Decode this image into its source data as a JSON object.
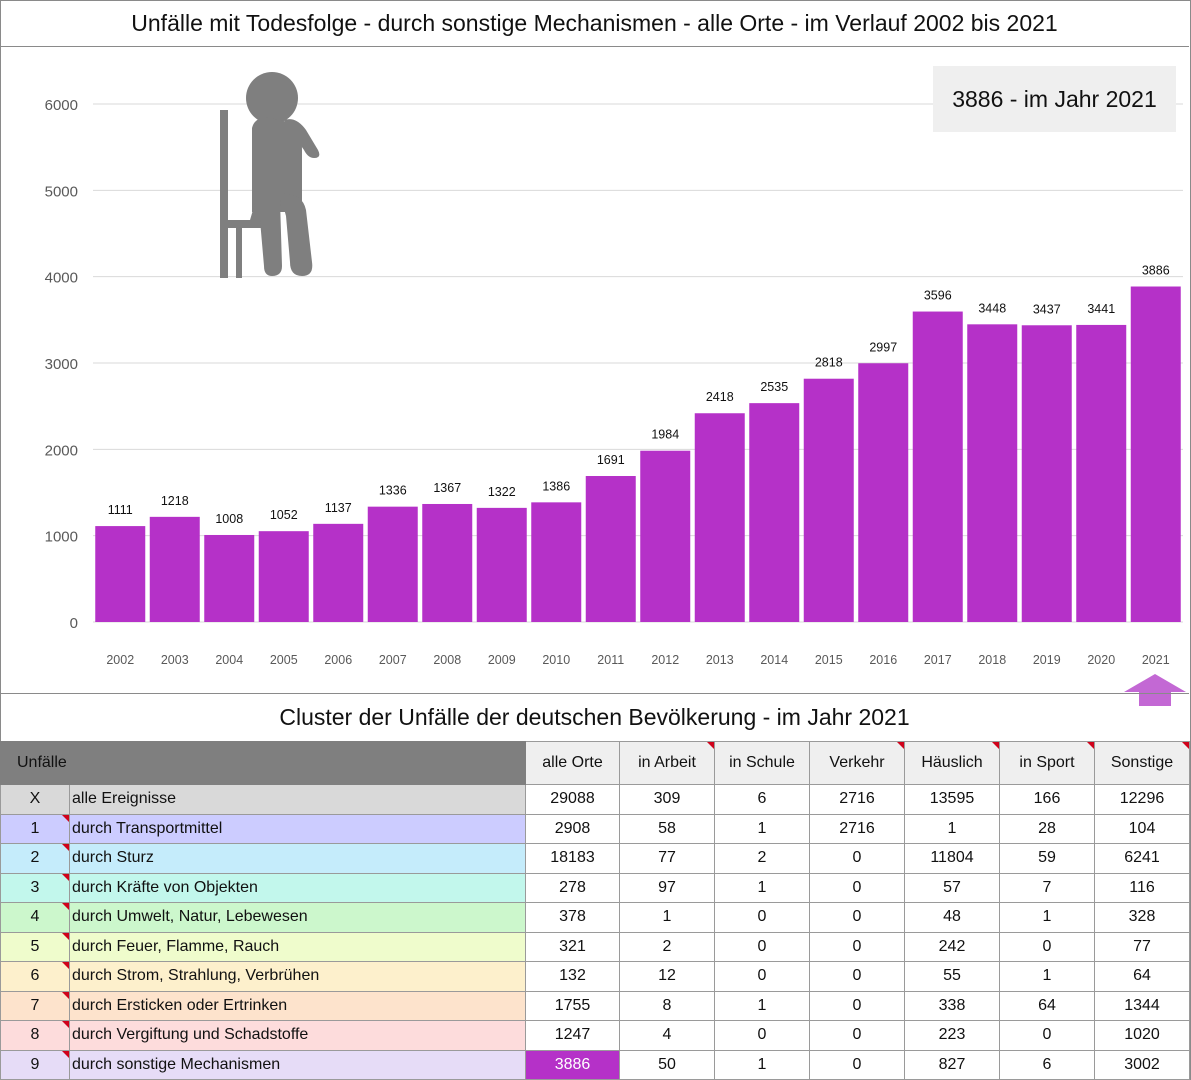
{
  "title": "Unfälle mit Todesfolge - durch sonstige Mechanismen - alle Orte - im Verlauf 2002 bis 2021",
  "callout": "3886 - im Jahr 2021",
  "colors": {
    "bar": "#b531c8",
    "highlight": "#b531c8",
    "grid": "#d9d9d9"
  },
  "icons": {
    "person": "person-sitting-icon",
    "arrow": "up-arrow-icon"
  },
  "chart_data": {
    "type": "bar",
    "title": "Unfälle mit Todesfolge - durch sonstige Mechanismen - alle Orte - im Verlauf 2002 bis 2021",
    "categories": [
      "2002",
      "2003",
      "2004",
      "2005",
      "2006",
      "2007",
      "2008",
      "2009",
      "2010",
      "2011",
      "2012",
      "2013",
      "2014",
      "2015",
      "2016",
      "2017",
      "2018",
      "2019",
      "2020",
      "2021"
    ],
    "values": [
      1111,
      1218,
      1008,
      1052,
      1137,
      1336,
      1367,
      1322,
      1386,
      1691,
      1984,
      2418,
      2535,
      2818,
      2997,
      3596,
      3448,
      3437,
      3441,
      3886
    ],
    "yticks": [
      "0",
      "1000",
      "2000",
      "3000",
      "4000",
      "5000",
      "6000"
    ],
    "ylim": [
      0,
      6000
    ],
    "grid": true,
    "data_labels": true
  },
  "table": {
    "subtitle": "Cluster der Unfälle der deutschen Bevölkerung - im Jahr 2021",
    "header_label": "Unfälle",
    "columns": [
      "alle Orte",
      "in Arbeit",
      "in Schule",
      "Verkehr",
      "Häuslich",
      "in Sport",
      "Sonstige"
    ],
    "rows": [
      {
        "id": "X",
        "label": "alle Ereignisse",
        "color": "#d9d9d9",
        "values": [
          "29088",
          "309",
          "6",
          "2716",
          "13595",
          "166",
          "12296"
        ]
      },
      {
        "id": "1",
        "label": "durch Transportmittel",
        "color": "#ccccff",
        "values": [
          "2908",
          "58",
          "1",
          "2716",
          "1",
          "28",
          "104"
        ]
      },
      {
        "id": "2",
        "label": "durch Sturz",
        "color": "#c5ecfb",
        "values": [
          "18183",
          "77",
          "2",
          "0",
          "11804",
          "59",
          "6241"
        ]
      },
      {
        "id": "3",
        "label": "durch Kräfte von Objekten",
        "color": "#c2f7ec",
        "values": [
          "278",
          "97",
          "1",
          "0",
          "57",
          "7",
          "116"
        ]
      },
      {
        "id": "4",
        "label": "durch Umwelt, Natur, Lebewesen",
        "color": "#ccf7cc",
        "values": [
          "378",
          "1",
          "0",
          "0",
          "48",
          "1",
          "328"
        ]
      },
      {
        "id": "5",
        "label": "durch Feuer, Flamme, Rauch",
        "color": "#effccc",
        "values": [
          "321",
          "2",
          "0",
          "0",
          "242",
          "0",
          "77"
        ]
      },
      {
        "id": "6",
        "label": "durch Strom, Strahlung, Verbrühen",
        "color": "#fdf0cc",
        "values": [
          "132",
          "12",
          "0",
          "0",
          "55",
          "1",
          "64"
        ]
      },
      {
        "id": "7",
        "label": "durch Ersticken oder Ertrinken",
        "color": "#fde3cc",
        "values": [
          "1755",
          "8",
          "1",
          "0",
          "338",
          "64",
          "1344"
        ]
      },
      {
        "id": "8",
        "label": "durch Vergiftung und Schadstoffe",
        "color": "#fddcdc",
        "values": [
          "1247",
          "4",
          "0",
          "0",
          "223",
          "0",
          "1020"
        ]
      },
      {
        "id": "9",
        "label": "durch sonstige Mechanismen",
        "color": "#e6dcf7",
        "values": [
          "3886",
          "50",
          "1",
          "0",
          "827",
          "6",
          "3002"
        ]
      }
    ]
  }
}
